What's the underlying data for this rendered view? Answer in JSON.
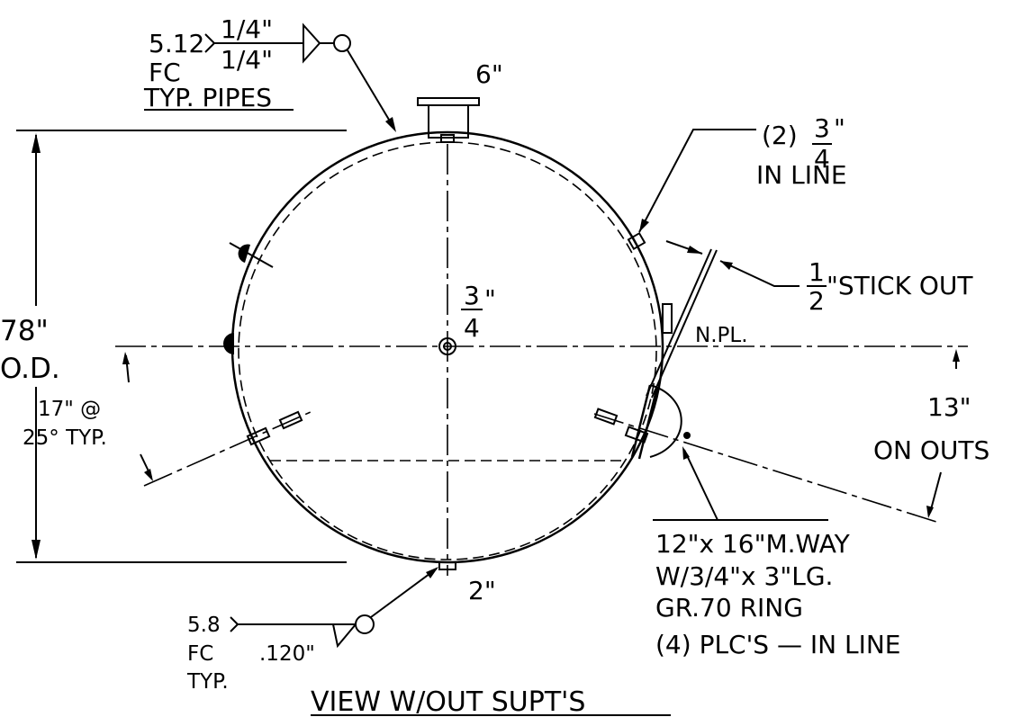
{
  "top_weld": {
    "size": "5.12",
    "arrow_side": "1/4\"",
    "other_side": "1/4\"",
    "note1": "FC",
    "note2": "TYP. PIPES"
  },
  "top_nozzle": "6\"",
  "coupling": {
    "count": "(2)",
    "numerator": "3",
    "denominator": "4",
    "unit": "\"",
    "note": "IN LINE"
  },
  "stick_out": {
    "numerator": "1",
    "denominator": "2",
    "text": "\"STICK OUT"
  },
  "center_coupling": {
    "numerator": "3",
    "denominator": "4",
    "unit": "\""
  },
  "nameplate": "N.PL.",
  "diameter": {
    "value": "78\"",
    "label": "O.D."
  },
  "angle_note": {
    "line1": "17\" @",
    "line2": "25° TYP."
  },
  "outs_note": {
    "line1": "13\"",
    "line2": "ON OUTS"
  },
  "manway": {
    "line1": "12\"x 16\"M.WAY",
    "line2": "W/3/4\"x 3\"LG.",
    "line3": "GR.70 RING",
    "line4": "(4) PLC'S — IN LINE"
  },
  "bottom_nozzle": "2\"",
  "bottom_weld": {
    "size": "5.8",
    "note1": "FC",
    "note2": "TYP.",
    "fillet": ".120\""
  },
  "view_title": "VIEW W/OUT SUPT'S"
}
